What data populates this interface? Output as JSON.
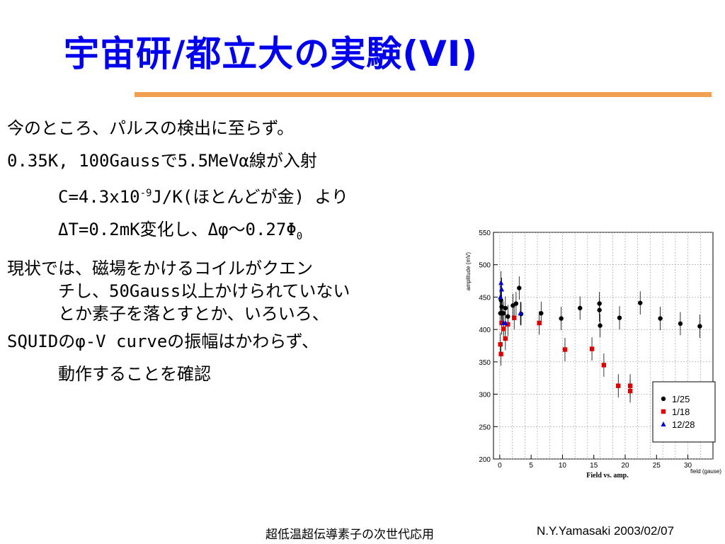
{
  "slide": {
    "title": "宇宙研/都立大の実験(VI)",
    "footer_left": "超低温超伝導素子の次世代応用",
    "footer_right": "N.Y.Yamasaki 2003/02/07"
  },
  "body": {
    "line1": "今のところ、パルスの検出に至らず。",
    "line2": "0.35K, 100Gaussで5.5MeVα線が入射",
    "line3_pre": "C=4.3x10",
    "line3_sup": "-9",
    "line3_post": "J/K(ほとんどが金) より",
    "line4_pre": "ΔT=0.2mK変化し、Δφ～0.27Φ",
    "line4_sub": "0",
    "line5": "現状では、磁場をかけるコイルがクエン",
    "line6": "チし、50Gauss以上かけられていない",
    "line7": "とか素子を落とすとか、いろいろ、",
    "line8": "SQUIDのφ-V curveの振幅はかわらず、",
    "line9": "動作することを確認"
  },
  "chart_data": {
    "type": "scatter",
    "title": "Field vs. amp.",
    "xlabel": "field (gause)",
    "ylabel": "amplitude (mV)",
    "xlim": [
      -1,
      34
    ],
    "ylim": [
      200,
      550
    ],
    "xticks": [
      0,
      5,
      10,
      15,
      20,
      25,
      30
    ],
    "yticks": [
      200,
      250,
      300,
      350,
      400,
      450,
      500,
      550
    ],
    "grid": true,
    "legend_position": "bottom-right",
    "series": [
      {
        "name": "1/25",
        "marker": "circle",
        "color": "#000000",
        "points": [
          {
            "x": 0.1,
            "y": 425,
            "err": 18
          },
          {
            "x": 0.2,
            "y": 445,
            "err": 18
          },
          {
            "x": 0.3,
            "y": 435,
            "err": 18
          },
          {
            "x": 0.4,
            "y": 425,
            "err": 18
          },
          {
            "x": 0.6,
            "y": 425,
            "err": 18
          },
          {
            "x": 0.9,
            "y": 433,
            "err": 18
          },
          {
            "x": 1.3,
            "y": 420,
            "err": 18
          },
          {
            "x": 2.1,
            "y": 437,
            "err": 18
          },
          {
            "x": 2.6,
            "y": 440,
            "err": 18
          },
          {
            "x": 3.1,
            "y": 464,
            "err": 18
          },
          {
            "x": 3.4,
            "y": 424,
            "err": 18
          },
          {
            "x": 6.6,
            "y": 425,
            "err": 18
          },
          {
            "x": 9.8,
            "y": 417,
            "err": 18
          },
          {
            "x": 12.8,
            "y": 433,
            "err": 18
          },
          {
            "x": 15.9,
            "y": 440,
            "err": 18
          },
          {
            "x": 15.9,
            "y": 430,
            "err": 18
          },
          {
            "x": 16.0,
            "y": 406,
            "err": 18
          },
          {
            "x": 19.1,
            "y": 418,
            "err": 18
          },
          {
            "x": 22.4,
            "y": 441,
            "err": 18
          },
          {
            "x": 25.6,
            "y": 417,
            "err": 18
          },
          {
            "x": 28.8,
            "y": 409,
            "err": 18
          },
          {
            "x": 31.9,
            "y": 405,
            "err": 18
          }
        ]
      },
      {
        "name": "1/18",
        "marker": "square",
        "color": "#dd0000",
        "points": [
          {
            "x": 0.1,
            "y": 377,
            "err": 18
          },
          {
            "x": 0.2,
            "y": 362,
            "err": 18
          },
          {
            "x": 0.3,
            "y": 410,
            "err": 18
          },
          {
            "x": 0.6,
            "y": 401,
            "err": 18
          },
          {
            "x": 0.9,
            "y": 386,
            "err": 18
          },
          {
            "x": 1.3,
            "y": 408,
            "err": 18
          },
          {
            "x": 2.3,
            "y": 418,
            "err": 18
          },
          {
            "x": 6.3,
            "y": 410,
            "err": 18
          },
          {
            "x": 10.4,
            "y": 369,
            "err": 18
          },
          {
            "x": 14.7,
            "y": 370,
            "err": 18
          },
          {
            "x": 16.6,
            "y": 345,
            "err": 18
          },
          {
            "x": 18.9,
            "y": 313,
            "err": 18
          },
          {
            "x": 20.8,
            "y": 313,
            "err": 18
          },
          {
            "x": 20.8,
            "y": 305,
            "err": 18
          }
        ]
      },
      {
        "name": "12/28",
        "marker": "triangle",
        "color": "#0000cc",
        "points": [
          {
            "x": 0.1,
            "y": 450,
            "err": 18
          },
          {
            "x": 0.2,
            "y": 472,
            "err": 18
          },
          {
            "x": 0.3,
            "y": 462,
            "err": 18
          },
          {
            "x": 0.6,
            "y": 410,
            "err": 18
          },
          {
            "x": 0.9,
            "y": 410,
            "err": 18
          },
          {
            "x": 3.3,
            "y": 425,
            "err": 18
          }
        ]
      }
    ]
  }
}
